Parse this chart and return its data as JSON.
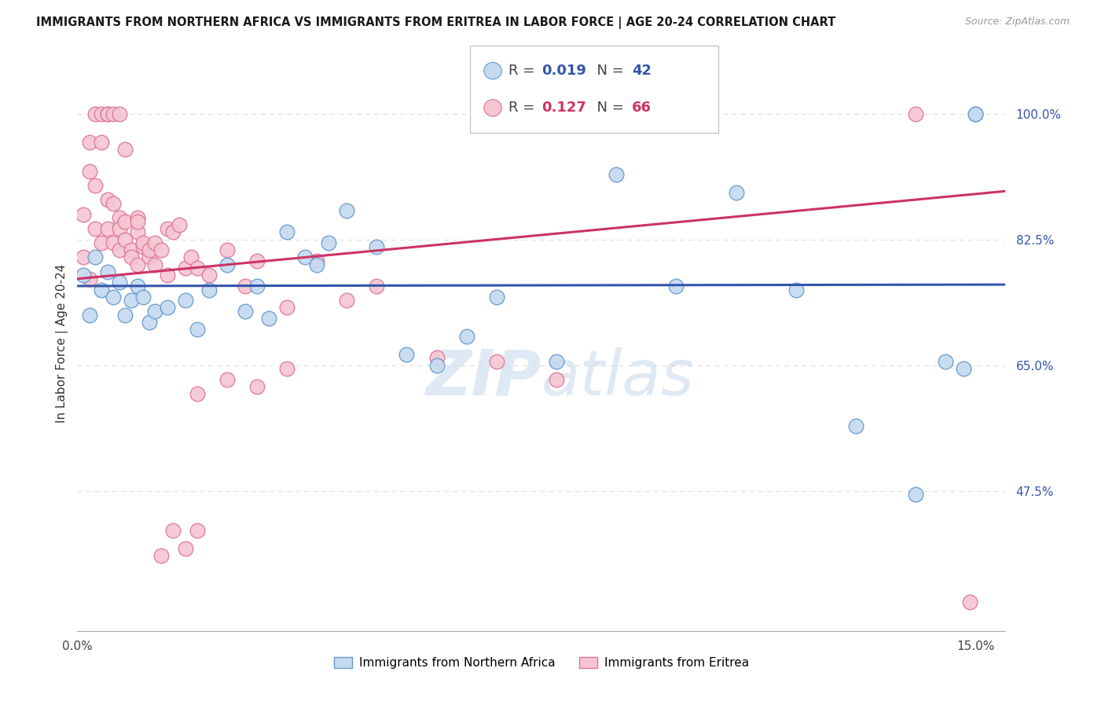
{
  "title": "IMMIGRANTS FROM NORTHERN AFRICA VS IMMIGRANTS FROM ERITREA IN LABOR FORCE | AGE 20-24 CORRELATION CHART",
  "source": "Source: ZipAtlas.com",
  "ylabel": "In Labor Force | Age 20-24",
  "xlim": [
    0.0,
    0.155
  ],
  "ylim": [
    0.28,
    1.08
  ],
  "yticks": [
    0.475,
    0.65,
    0.825,
    1.0
  ],
  "ytick_labels": [
    "47.5%",
    "65.0%",
    "82.5%",
    "100.0%"
  ],
  "xtick_labels": [
    "0.0%",
    "15.0%"
  ],
  "xticks": [
    0.0,
    0.15
  ],
  "blue_R": 0.019,
  "blue_N": 42,
  "pink_R": 0.127,
  "pink_N": 66,
  "blue_label": "Immigrants from Northern Africa",
  "pink_label": "Immigrants from Eritrea",
  "blue_face": "#c5daef",
  "blue_edge": "#6699cc",
  "pink_face": "#f5c5d2",
  "pink_edge": "#dd7799",
  "blue_line": "#3355aa",
  "pink_line": "#cc3366",
  "watermark": "ZIPatlas",
  "bg": "#ffffff",
  "grid_color": "#dddddd",
  "blue_x": [
    0.001,
    0.002,
    0.003,
    0.004,
    0.005,
    0.006,
    0.007,
    0.008,
    0.009,
    0.01,
    0.011,
    0.012,
    0.013,
    0.015,
    0.018,
    0.02,
    0.022,
    0.025,
    0.028,
    0.03,
    0.032,
    0.035,
    0.038,
    0.04,
    0.042,
    0.045,
    0.05,
    0.055,
    0.06,
    0.065,
    0.07,
    0.08,
    0.09,
    0.1,
    0.11,
    0.12,
    0.13,
    0.14,
    0.145,
    0.148,
    0.15,
    0.15
  ],
  "blue_y": [
    0.775,
    0.72,
    0.8,
    0.755,
    0.78,
    0.745,
    0.765,
    0.72,
    0.74,
    0.76,
    0.745,
    0.71,
    0.725,
    0.73,
    0.74,
    0.7,
    0.755,
    0.79,
    0.725,
    0.76,
    0.715,
    0.835,
    0.8,
    0.79,
    0.82,
    0.865,
    0.815,
    0.665,
    0.65,
    0.69,
    0.745,
    0.655,
    0.915,
    0.76,
    0.89,
    0.755,
    0.565,
    0.47,
    0.655,
    0.645,
    1.0,
    1.0
  ],
  "pink_x": [
    0.001,
    0.001,
    0.002,
    0.002,
    0.002,
    0.003,
    0.003,
    0.003,
    0.004,
    0.004,
    0.004,
    0.005,
    0.005,
    0.005,
    0.005,
    0.006,
    0.006,
    0.006,
    0.007,
    0.007,
    0.007,
    0.007,
    0.008,
    0.008,
    0.008,
    0.009,
    0.009,
    0.01,
    0.01,
    0.01,
    0.01,
    0.011,
    0.011,
    0.012,
    0.012,
    0.013,
    0.013,
    0.014,
    0.015,
    0.015,
    0.016,
    0.017,
    0.018,
    0.019,
    0.02,
    0.022,
    0.025,
    0.028,
    0.03,
    0.035,
    0.04,
    0.045,
    0.05,
    0.06,
    0.07,
    0.08,
    0.02,
    0.025,
    0.03,
    0.035,
    0.014,
    0.016,
    0.018,
    0.02,
    0.14,
    0.149
  ],
  "pink_y": [
    0.8,
    0.86,
    0.77,
    0.92,
    0.96,
    0.9,
    1.0,
    0.84,
    0.82,
    0.96,
    1.0,
    0.88,
    1.0,
    0.84,
    1.0,
    0.82,
    0.875,
    1.0,
    0.855,
    0.84,
    1.0,
    0.81,
    0.825,
    0.85,
    0.95,
    0.81,
    0.8,
    0.855,
    0.835,
    0.79,
    0.85,
    0.815,
    0.82,
    0.8,
    0.81,
    0.82,
    0.79,
    0.81,
    0.775,
    0.84,
    0.835,
    0.845,
    0.785,
    0.8,
    0.785,
    0.775,
    0.81,
    0.76,
    0.795,
    0.73,
    0.795,
    0.74,
    0.76,
    0.66,
    0.655,
    0.63,
    0.61,
    0.63,
    0.62,
    0.645,
    0.385,
    0.42,
    0.395,
    0.42,
    1.0,
    0.32
  ]
}
